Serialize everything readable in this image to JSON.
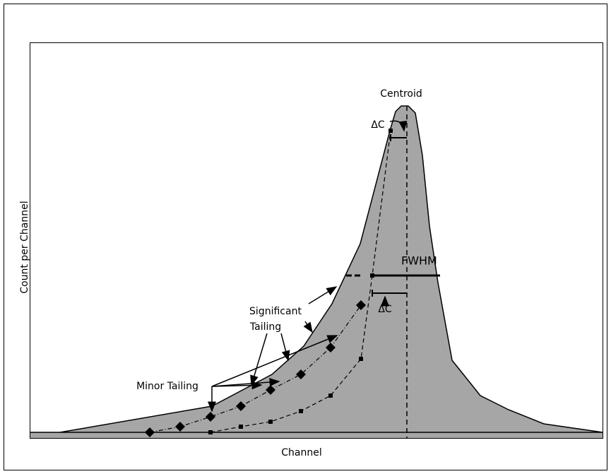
{
  "diagram": {
    "y_axis_label": "Count per Channel",
    "x_axis_label": "Channel",
    "centroid_label": "Centroid",
    "delta_c_top": "ΔC",
    "fwhm_label": "FWHM",
    "delta_c_bottom": "ΔC",
    "significant_tailing": [
      "Significant",
      "Tailing"
    ],
    "minor_tailing": "Minor Tailing"
  }
}
